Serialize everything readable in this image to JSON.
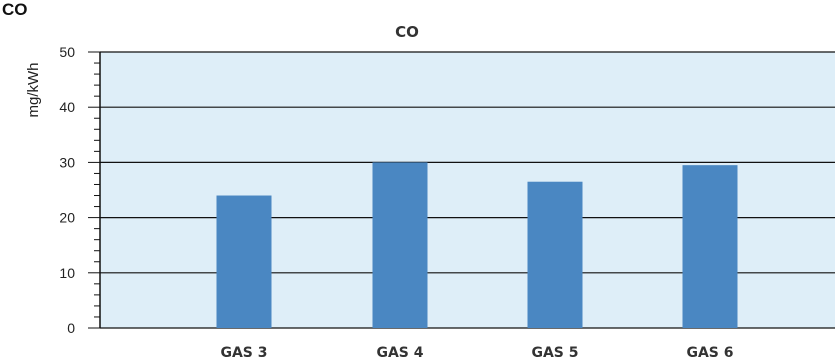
{
  "heading": "CO",
  "chart_data": {
    "type": "bar",
    "title": "CO",
    "xlabel": "",
    "ylabel": "mg/kWh",
    "categories": [
      "GAS 3",
      "GAS 4",
      "GAS 5",
      "GAS 6"
    ],
    "values": [
      24,
      30,
      26.5,
      29.5
    ],
    "ylim": [
      0,
      50
    ],
    "yticks": [
      "0",
      "10",
      "20",
      "30",
      "40",
      "50"
    ],
    "grid": true,
    "legend": "none",
    "colors": {
      "bar": "#4a87c2",
      "plot_bg": "#deeef8",
      "grid": "#111111"
    }
  }
}
